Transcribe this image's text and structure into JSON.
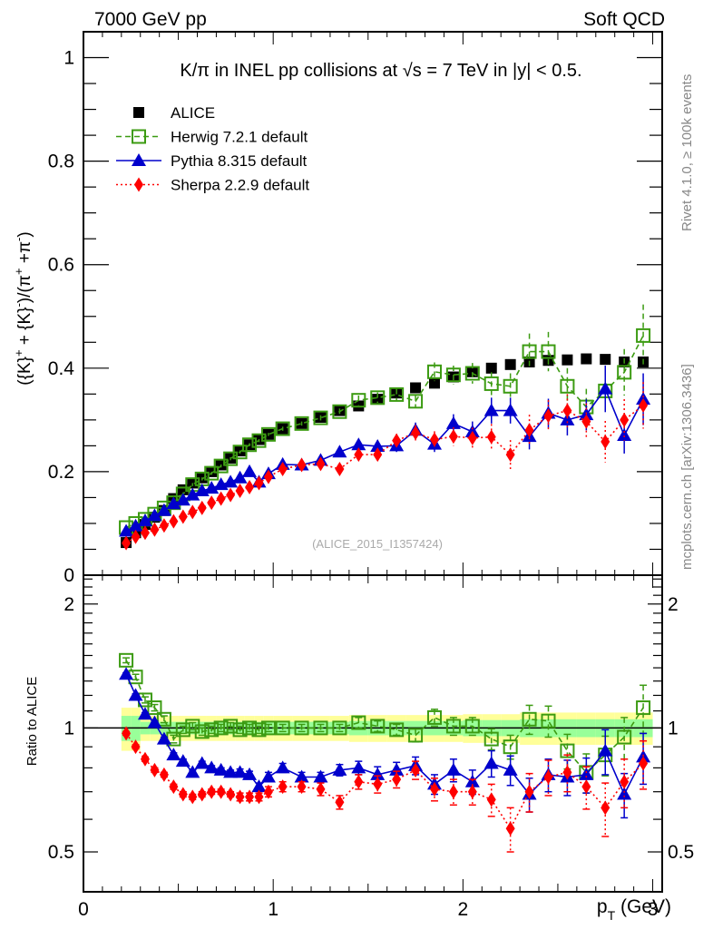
{
  "header": {
    "left_label": "7000 GeV pp",
    "right_label": "Soft QCD"
  },
  "side_labels": {
    "rivet": "Rivet 4.1.0, ≥ 100k events",
    "mcplots": "mcplots.cern.ch [arXiv:1306.3436]"
  },
  "chart_data": [
    {
      "type": "scatter",
      "panel": "main",
      "title": "K/π in INEL pp collisions at √s =  7 TeV in |y| < 0.5.",
      "watermark": "(ALICE_2015_I1357424)",
      "xlabel": "p_T (GeV)",
      "ylabel": "({K}^+ + {K}^-)/(π^+ +π^-)",
      "xlim": [
        0,
        3.05
      ],
      "ylim": [
        0,
        1.05
      ],
      "xticks": [
        "0",
        "1",
        "2",
        "3"
      ],
      "yticks": [
        "0",
        "0.2",
        "0.4",
        "0.6",
        "0.8",
        "1"
      ],
      "legend_position": "top-left",
      "x": [
        0.225,
        0.275,
        0.325,
        0.375,
        0.425,
        0.475,
        0.525,
        0.575,
        0.625,
        0.675,
        0.725,
        0.775,
        0.825,
        0.875,
        0.925,
        0.975,
        1.05,
        1.15,
        1.25,
        1.35,
        1.45,
        1.55,
        1.65,
        1.75,
        1.85,
        1.95,
        2.05,
        2.15,
        2.25,
        2.35,
        2.45,
        2.55,
        2.65,
        2.75,
        2.85,
        2.95
      ],
      "series": [
        {
          "name": "ALICE",
          "marker": "square-filled",
          "color": "#000000",
          "line": "none",
          "values": [
            0.063,
            0.082,
            0.098,
            0.112,
            0.125,
            0.148,
            0.165,
            0.178,
            0.188,
            0.2,
            0.213,
            0.226,
            0.24,
            0.252,
            0.262,
            0.272,
            0.283,
            0.293,
            0.305,
            0.318,
            0.327,
            0.34,
            0.352,
            0.362,
            0.371,
            0.383,
            0.393,
            0.4,
            0.407,
            0.412,
            0.415,
            0.416,
            0.418,
            0.417,
            0.412,
            0.412
          ]
        },
        {
          "name": "Herwig 7.2.1 default",
          "marker": "square-open",
          "color": "#3c9b12",
          "line": "dashed",
          "values": [
            0.092,
            0.1,
            0.108,
            0.118,
            0.13,
            0.14,
            0.157,
            0.175,
            0.186,
            0.197,
            0.211,
            0.225,
            0.238,
            0.252,
            0.26,
            0.272,
            0.283,
            0.293,
            0.304,
            0.316,
            0.338,
            0.343,
            0.349,
            0.336,
            0.393,
            0.387,
            0.39,
            0.37,
            0.365,
            0.432,
            0.432,
            0.365,
            0.325,
            0.356,
            0.392,
            0.463
          ],
          "errors": [
            0.003,
            0.003,
            0.003,
            0.003,
            0.003,
            0.003,
            0.003,
            0.003,
            0.003,
            0.003,
            0.003,
            0.003,
            0.003,
            0.003,
            0.003,
            0.003,
            0.004,
            0.004,
            0.005,
            0.006,
            0.009,
            0.01,
            0.011,
            0.012,
            0.018,
            0.018,
            0.02,
            0.022,
            0.025,
            0.035,
            0.038,
            0.035,
            0.035,
            0.04,
            0.045,
            0.06
          ]
        },
        {
          "name": "Pythia 8.315 default",
          "marker": "triangle-up-filled",
          "color": "#0000cc",
          "line": "solid",
          "values": [
            0.085,
            0.095,
            0.105,
            0.115,
            0.125,
            0.138,
            0.145,
            0.155,
            0.163,
            0.168,
            0.175,
            0.18,
            0.188,
            0.2,
            0.18,
            0.196,
            0.214,
            0.213,
            0.222,
            0.238,
            0.252,
            0.249,
            0.25,
            0.28,
            0.253,
            0.293,
            0.277,
            0.318,
            0.318,
            0.268,
            0.313,
            0.3,
            0.31,
            0.36,
            0.27,
            0.34
          ],
          "errors": [
            0.002,
            0.002,
            0.002,
            0.002,
            0.002,
            0.002,
            0.002,
            0.002,
            0.002,
            0.002,
            0.002,
            0.003,
            0.003,
            0.003,
            0.003,
            0.004,
            0.005,
            0.005,
            0.006,
            0.007,
            0.01,
            0.012,
            0.012,
            0.015,
            0.015,
            0.018,
            0.02,
            0.025,
            0.025,
            0.025,
            0.028,
            0.03,
            0.03,
            0.045,
            0.035,
            0.05
          ]
        },
        {
          "name": "Sherpa 2.2.9 default",
          "marker": "diamond-filled",
          "color": "#ff0000",
          "line": "dotted",
          "values": [
            0.062,
            0.074,
            0.082,
            0.088,
            0.096,
            0.104,
            0.113,
            0.122,
            0.13,
            0.14,
            0.148,
            0.155,
            0.163,
            0.17,
            0.178,
            0.19,
            0.205,
            0.213,
            0.215,
            0.205,
            0.233,
            0.233,
            0.26,
            0.275,
            0.262,
            0.268,
            0.265,
            0.267,
            0.233,
            0.28,
            0.308,
            0.318,
            0.297,
            0.258,
            0.3,
            0.328
          ],
          "errors": [
            0.002,
            0.002,
            0.002,
            0.002,
            0.002,
            0.002,
            0.002,
            0.002,
            0.002,
            0.002,
            0.002,
            0.003,
            0.003,
            0.003,
            0.003,
            0.004,
            0.005,
            0.005,
            0.006,
            0.007,
            0.01,
            0.012,
            0.013,
            0.015,
            0.016,
            0.018,
            0.02,
            0.025,
            0.028,
            0.03,
            0.03,
            0.032,
            0.035,
            0.04,
            0.04,
            0.045
          ]
        }
      ]
    },
    {
      "type": "scatter",
      "panel": "ratio",
      "ylabel": "Ratio to ALICE",
      "xlabel": "p_T (GeV)",
      "yscale": "log",
      "xlim": [
        0,
        3.05
      ],
      "ylim": [
        0.4,
        2.35
      ],
      "yticks": [
        "0.5",
        "1",
        "2"
      ],
      "xticks": [
        "0",
        "1",
        "2",
        "3"
      ],
      "reference_line": 1,
      "band_stat_fraction": [
        0.07,
        0.07,
        0.035,
        0.035,
        0.035,
        0.035,
        0.035,
        0.035,
        0.035,
        0.035,
        0.035,
        0.035,
        0.035,
        0.035,
        0.035,
        0.035,
        0.035,
        0.035,
        0.035,
        0.035,
        0.04,
        0.04,
        0.04,
        0.04,
        0.04,
        0.04,
        0.045,
        0.045,
        0.045,
        0.05,
        0.05,
        0.05,
        0.05,
        0.05,
        0.05,
        0.05
      ],
      "band_syst_fraction": [
        0.12,
        0.12,
        0.07,
        0.07,
        0.07,
        0.07,
        0.07,
        0.07,
        0.07,
        0.07,
        0.07,
        0.07,
        0.07,
        0.07,
        0.07,
        0.07,
        0.07,
        0.07,
        0.07,
        0.07,
        0.075,
        0.075,
        0.075,
        0.075,
        0.075,
        0.075,
        0.08,
        0.08,
        0.08,
        0.09,
        0.09,
        0.09,
        0.09,
        0.09,
        0.09,
        0.09
      ],
      "series": [
        {
          "name": "Herwig 7.2.1 default",
          "values": [
            1.46,
            1.33,
            1.17,
            1.12,
            1.05,
            0.94,
            0.99,
            1.01,
            0.98,
            0.99,
            1.0,
            1.01,
            0.99,
            1.0,
            0.99,
            1.0,
            1.0,
            1.0,
            1.0,
            1.0,
            1.03,
            1.01,
            0.99,
            0.96,
            1.06,
            1.01,
            1.01,
            0.94,
            0.9,
            1.05,
            1.04,
            0.88,
            0.78,
            0.86,
            0.95,
            1.12
          ],
          "errors": [
            0.02,
            0.02,
            0.02,
            0.02,
            0.02,
            0.02,
            0.02,
            0.02,
            0.02,
            0.02,
            0.02,
            0.02,
            0.02,
            0.02,
            0.02,
            0.02,
            0.02,
            0.02,
            0.02,
            0.02,
            0.03,
            0.03,
            0.03,
            0.035,
            0.05,
            0.05,
            0.05,
            0.055,
            0.06,
            0.085,
            0.09,
            0.085,
            0.085,
            0.095,
            0.11,
            0.15
          ]
        },
        {
          "name": "Pythia 8.315 default",
          "values": [
            1.35,
            1.2,
            1.08,
            1.03,
            0.94,
            0.86,
            0.83,
            0.78,
            0.82,
            0.8,
            0.79,
            0.78,
            0.78,
            0.77,
            0.72,
            0.76,
            0.8,
            0.76,
            0.76,
            0.79,
            0.8,
            0.77,
            0.79,
            0.81,
            0.73,
            0.79,
            0.74,
            0.82,
            0.79,
            0.69,
            0.77,
            0.76,
            0.77,
            0.88,
            0.69,
            0.85
          ],
          "errors": [
            0.01,
            0.01,
            0.01,
            0.01,
            0.01,
            0.01,
            0.01,
            0.01,
            0.01,
            0.01,
            0.01,
            0.01,
            0.015,
            0.015,
            0.015,
            0.02,
            0.02,
            0.02,
            0.02,
            0.025,
            0.03,
            0.035,
            0.035,
            0.04,
            0.04,
            0.05,
            0.05,
            0.06,
            0.065,
            0.065,
            0.07,
            0.075,
            0.075,
            0.11,
            0.085,
            0.12
          ]
        },
        {
          "name": "Sherpa 2.2.9 default",
          "values": [
            0.97,
            0.9,
            0.84,
            0.79,
            0.77,
            0.72,
            0.69,
            0.68,
            0.69,
            0.7,
            0.7,
            0.69,
            0.68,
            0.68,
            0.68,
            0.7,
            0.72,
            0.72,
            0.71,
            0.66,
            0.74,
            0.73,
            0.75,
            0.79,
            0.71,
            0.7,
            0.7,
            0.67,
            0.57,
            0.7,
            0.76,
            0.78,
            0.72,
            0.64,
            0.74,
            0.82
          ],
          "errors": [
            0.01,
            0.01,
            0.01,
            0.01,
            0.01,
            0.01,
            0.01,
            0.01,
            0.01,
            0.01,
            0.01,
            0.01,
            0.015,
            0.015,
            0.015,
            0.02,
            0.02,
            0.02,
            0.025,
            0.025,
            0.03,
            0.035,
            0.035,
            0.04,
            0.045,
            0.05,
            0.05,
            0.06,
            0.07,
            0.075,
            0.075,
            0.08,
            0.085,
            0.095,
            0.1,
            0.11
          ]
        }
      ]
    }
  ],
  "legend": [
    {
      "label": "ALICE"
    },
    {
      "label": "Herwig 7.2.1 default"
    },
    {
      "label": "Pythia 8.315 default"
    },
    {
      "label": "Sherpa 2.2.9 default"
    }
  ],
  "colors": {
    "alice": "#000000",
    "herwig": "#3c9b12",
    "pythia": "#0000cc",
    "sherpa": "#ff0000",
    "band_syst": "#ffff99",
    "band_stat": "#99ff99",
    "side_text": "#888888"
  }
}
